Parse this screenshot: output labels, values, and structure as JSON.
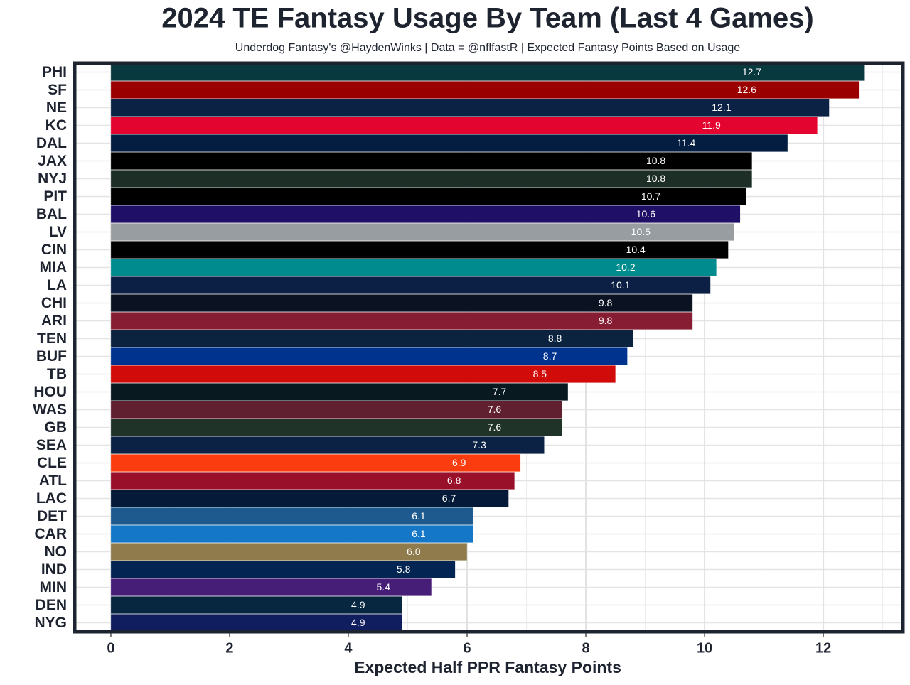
{
  "chart_data": {
    "type": "bar",
    "orientation": "horizontal",
    "title": "2024 TE Fantasy Usage By Team (Last 4 Games)",
    "subtitle": "Underdog Fantasy's @HaydenWinks | Data = @nflfastR | Expected Fantasy Points Based on Usage",
    "xlabel": "Expected Half PPR Fantasy Points",
    "categories": [
      "PHI",
      "SF",
      "NE",
      "KC",
      "DAL",
      "JAX",
      "NYJ",
      "PIT",
      "BAL",
      "LV",
      "CIN",
      "MIA",
      "LA",
      "CHI",
      "ARI",
      "TEN",
      "BUF",
      "TB",
      "HOU",
      "WAS",
      "GB",
      "SEA",
      "CLE",
      "ATL",
      "LAC",
      "DET",
      "CAR",
      "NO",
      "IND",
      "MIN",
      "DEN",
      "NYG"
    ],
    "values": [
      12.7,
      12.6,
      12.1,
      11.9,
      11.4,
      10.8,
      10.8,
      10.7,
      10.6,
      10.5,
      10.4,
      10.2,
      10.1,
      9.8,
      9.8,
      8.8,
      8.7,
      8.5,
      7.7,
      7.6,
      7.6,
      7.3,
      6.9,
      6.8,
      6.7,
      6.1,
      6.1,
      6.0,
      5.8,
      5.4,
      4.9,
      4.9
    ],
    "value_labels": [
      "12.7",
      "12.6",
      "12.1",
      "11.9",
      "11.4",
      "10.8",
      "10.8",
      "10.7",
      "10.6",
      "10.5",
      "10.4",
      "10.2",
      "10.1",
      "9.8",
      "9.8",
      "8.8",
      "8.7",
      "8.5",
      "7.7",
      "7.6",
      "7.6",
      "7.3",
      "6.9",
      "6.8",
      "6.7",
      "6.1",
      "6.1",
      "6.0",
      "5.8",
      "5.4",
      "4.9",
      "4.9"
    ],
    "colors": [
      "#07393f",
      "#9b0000",
      "#0b2244",
      "#e3052f",
      "#041e42",
      "#000000",
      "#1d2e27",
      "#000000",
      "#1f0f66",
      "#979da0",
      "#000000",
      "#008c8f",
      "#0b2044",
      "#0b1222",
      "#861d33",
      "#0c2340",
      "#00338d",
      "#d10a0a",
      "#08191f",
      "#612030",
      "#1f3328",
      "#0b2244",
      "#fb3c0f",
      "#98102a",
      "#051a38",
      "#1e5a8e",
      "#1477c7",
      "#8f7b4b",
      "#032554",
      "#461e78",
      "#072640",
      "#101d5e"
    ],
    "xlim": [
      -0.61,
      13.34
    ],
    "xticks": [
      0,
      2,
      4,
      6,
      8,
      10,
      12
    ],
    "grid": true
  }
}
